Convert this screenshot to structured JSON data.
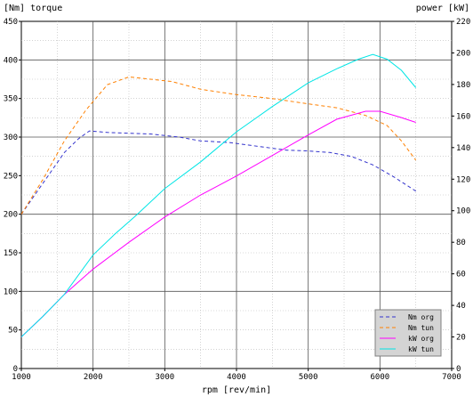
{
  "chart_data": {
    "type": "line",
    "left_axis_label": "[Nm] torque",
    "right_axis_label": "power [kW]",
    "xlabel": "rpm [rev/min]",
    "xlim": [
      1000,
      7000
    ],
    "ylim_left": [
      0,
      450
    ],
    "ylim_right": [
      0,
      220
    ],
    "x_ticks": [
      1000,
      2000,
      3000,
      4000,
      5000,
      6000,
      7000
    ],
    "left_ticks": [
      0,
      50,
      100,
      150,
      200,
      250,
      300,
      350,
      400,
      450
    ],
    "right_ticks": [
      0,
      20,
      40,
      60,
      80,
      100,
      120,
      140,
      160,
      180,
      200,
      220
    ],
    "grid_major_x": [
      2000,
      3000,
      4000,
      5000,
      6000
    ],
    "grid_major_y": [
      100,
      200,
      300,
      400
    ],
    "grid": true,
    "legend_position": "bottom-right",
    "series": [
      {
        "name": "Nm org",
        "axis": "left",
        "color": "#3333cc",
        "dash": "dashed",
        "x": [
          1000,
          1300,
          1600,
          1800,
          1950,
          2200,
          2500,
          2800,
          3200,
          3500,
          3900,
          4300,
          4700,
          5000,
          5300,
          5600,
          5900,
          6200,
          6500
        ],
        "y": [
          200,
          240,
          280,
          298,
          308,
          306,
          305,
          304,
          300,
          295,
          293,
          288,
          283,
          282,
          280,
          275,
          264,
          248,
          230
        ]
      },
      {
        "name": "Nm tun",
        "axis": "left",
        "color": "#ff8000",
        "dash": "dashed",
        "x": [
          1000,
          1300,
          1600,
          1900,
          2200,
          2500,
          2800,
          3100,
          3500,
          4000,
          4500,
          5000,
          5400,
          5800,
          6100,
          6300,
          6500
        ],
        "y": [
          200,
          245,
          295,
          335,
          368,
          378,
          375,
          372,
          362,
          355,
          350,
          343,
          338,
          328,
          315,
          295,
          270
        ]
      },
      {
        "name": "kW org",
        "axis": "right",
        "color": "#ff00ff",
        "dash": "solid",
        "x": [
          1000,
          1300,
          1600,
          2000,
          2500,
          3000,
          3500,
          4000,
          4500,
          5000,
          5400,
          5800,
          6000,
          6300,
          6500
        ],
        "y": [
          20,
          33,
          47,
          63,
          80,
          96,
          110,
          122,
          135,
          148,
          158,
          163,
          163,
          159,
          156
        ]
      },
      {
        "name": "kW tun",
        "axis": "right",
        "color": "#00e5e5",
        "dash": "solid",
        "x": [
          1000,
          1300,
          1600,
          2000,
          2300,
          2600,
          3000,
          3500,
          4000,
          4500,
          5000,
          5400,
          5700,
          5900,
          6100,
          6300,
          6500
        ],
        "y": [
          20,
          33,
          47,
          72,
          85,
          97,
          114,
          131,
          150,
          166,
          181,
          190,
          196,
          199,
          196,
          189,
          178
        ]
      }
    ]
  }
}
